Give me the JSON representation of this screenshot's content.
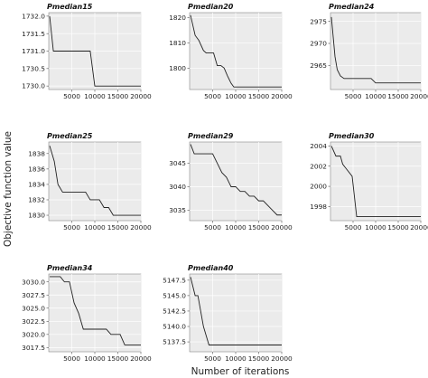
{
  "ylabel": "Objective function value",
  "xlabel": "Number of iterations",
  "chart_data": [
    {
      "type": "line",
      "title": "Pmedian15",
      "xlim": [
        0,
        20000
      ],
      "ylim": [
        1729.9,
        1732.1
      ],
      "xticks": [
        5000,
        10000,
        15000,
        20000
      ],
      "yticks": [
        1730.0,
        1730.5,
        1731.0,
        1731.5,
        1732.0
      ],
      "ytick_labels": [
        "1730.0",
        "1730.5",
        "1731.0",
        "1731.5",
        "1732.0"
      ],
      "grid": true,
      "x": [
        200,
        1000,
        1000,
        9000,
        10000,
        20000
      ],
      "y": [
        1732.0,
        1731.0,
        1731.0,
        1731.0,
        1730.0,
        1730.0
      ]
    },
    {
      "type": "line",
      "title": "Pmedian20",
      "xlim": [
        0,
        20000
      ],
      "ylim": [
        1791.5,
        1822
      ],
      "xticks": [
        5000,
        10000,
        15000,
        20000
      ],
      "yticks": [
        1800,
        1810,
        1820
      ],
      "ytick_labels": [
        "1800",
        "1810",
        "1820"
      ],
      "grid": true,
      "x": [
        200,
        1200,
        2000,
        3000,
        3600,
        4200,
        5200,
        6000,
        6800,
        7500,
        8200,
        9000,
        9600,
        10400,
        12000,
        20000
      ],
      "y": [
        1821,
        1813,
        1811,
        1807,
        1806,
        1806,
        1806,
        1801,
        1801,
        1800,
        1797,
        1794,
        1792.5,
        1792.5,
        1792.5,
        1792.5
      ]
    },
    {
      "type": "line",
      "title": "Pmedian24",
      "xlim": [
        0,
        20000
      ],
      "ylim": [
        2959.5,
        2977
      ],
      "xticks": [
        5000,
        10000,
        15000,
        20000
      ],
      "yticks": [
        2965,
        2970,
        2975
      ],
      "ytick_labels": [
        "2965",
        "2970",
        "2975"
      ],
      "grid": true,
      "x": [
        200,
        1000,
        1500,
        2200,
        3000,
        9000,
        10000,
        20000
      ],
      "y": [
        2976,
        2967,
        2964,
        2962.6,
        2962,
        2962,
        2961,
        2961
      ]
    },
    {
      "type": "line",
      "title": "Pmedian25",
      "xlim": [
        0,
        20000
      ],
      "ylim": [
        1829.3,
        1839.5
      ],
      "xticks": [
        5000,
        10000,
        15000,
        20000
      ],
      "yticks": [
        1830,
        1832,
        1834,
        1836,
        1838
      ],
      "ytick_labels": [
        "1830",
        "1832",
        "1834",
        "1836",
        "1838"
      ],
      "grid": true,
      "x": [
        200,
        1200,
        2000,
        3000,
        4000,
        8000,
        9000,
        11000,
        12000,
        13000,
        14000,
        20000
      ],
      "y": [
        1839,
        1837,
        1834,
        1833,
        1833,
        1833,
        1832,
        1832,
        1831,
        1831,
        1830,
        1830
      ]
    },
    {
      "type": "line",
      "title": "Pmedian29",
      "xlim": [
        0,
        20000
      ],
      "ylim": [
        3032.8,
        3049.5
      ],
      "xticks": [
        5000,
        10000,
        15000,
        20000
      ],
      "yticks": [
        3035,
        3040,
        3045
      ],
      "ytick_labels": [
        "3035",
        "3040",
        "3045"
      ],
      "grid": true,
      "x": [
        200,
        1000,
        5000,
        6000,
        7000,
        8000,
        9000,
        10000,
        11000,
        12000,
        13000,
        14000,
        15000,
        16000,
        17000,
        18000,
        19000,
        20000
      ],
      "y": [
        3049,
        3047,
        3047,
        3045,
        3043,
        3042,
        3040,
        3040,
        3039,
        3039,
        3038,
        3038,
        3037,
        3037,
        3036,
        3035,
        3034,
        3034
      ]
    },
    {
      "type": "line",
      "title": "Pmedian30",
      "xlim": [
        0,
        20000
      ],
      "ylim": [
        1996.6,
        2004.4
      ],
      "xticks": [
        5000,
        10000,
        15000,
        20000
      ],
      "yticks": [
        1998,
        2000,
        2002,
        2004
      ],
      "ytick_labels": [
        "1998",
        "2000",
        "2002",
        "2004"
      ],
      "grid": true,
      "x": [
        200,
        1200,
        2200,
        2700,
        4800,
        5800,
        20000
      ],
      "y": [
        2004,
        2003,
        2003,
        2002.2,
        2001,
        1997,
        1997
      ]
    },
    {
      "type": "line",
      "title": "Pmedian34",
      "xlim": [
        0,
        20000
      ],
      "ylim": [
        3016.7,
        3031.5
      ],
      "xticks": [
        5000,
        10000,
        15000,
        20000
      ],
      "yticks": [
        3017.5,
        3020.0,
        3022.5,
        3025.0,
        3027.5,
        3030.0
      ],
      "ytick_labels": [
        "3017.5",
        "3020.0",
        "3022.5",
        "3025.0",
        "3027.5",
        "3030.0"
      ],
      "grid": true,
      "x": [
        200,
        2500,
        3400,
        4500,
        5500,
        6500,
        7500,
        12500,
        13500,
        15500,
        16500,
        20000
      ],
      "y": [
        3031,
        3031,
        3030,
        3030,
        3026,
        3024,
        3021,
        3021,
        3020,
        3020,
        3018,
        3018
      ]
    },
    {
      "type": "line",
      "title": "Pmedian40",
      "xlim": [
        0,
        20000
      ],
      "ylim": [
        5135.9,
        5148.5
      ],
      "xticks": [
        5000,
        10000,
        15000,
        20000
      ],
      "yticks": [
        5137.5,
        5140.0,
        5142.5,
        5145.0,
        5147.5
      ],
      "ytick_labels": [
        "5137.5",
        "5140.0",
        "5142.5",
        "5145.0",
        "5147.5"
      ],
      "grid": true,
      "x": [
        200,
        1200,
        1800,
        3000,
        4200,
        20000
      ],
      "y": [
        5148,
        5145,
        5145,
        5140,
        5137,
        5137
      ]
    }
  ]
}
